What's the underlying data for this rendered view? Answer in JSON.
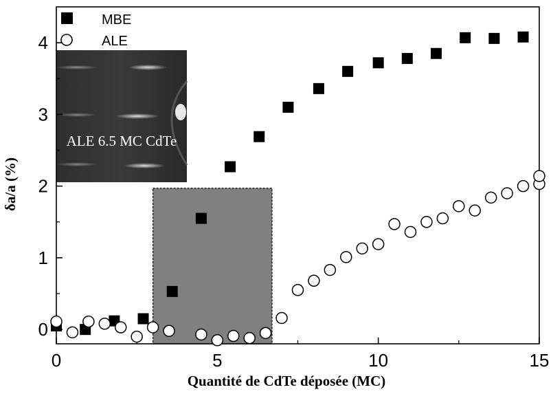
{
  "chart_data": {
    "type": "scatter",
    "xlabel": "Quantité de CdTe déposée (MC)",
    "ylabel": "δa/a (%)",
    "xlim": [
      0,
      15
    ],
    "ylim": [
      -0.2,
      4.5
    ],
    "xticks": [
      0,
      5,
      10,
      15
    ],
    "yticks": [
      0,
      1,
      2,
      3,
      4
    ],
    "legend_position": "top-left",
    "series": [
      {
        "name": "MBE",
        "marker": "filled-square",
        "color": "#000000",
        "points": [
          [
            0,
            0.05
          ],
          [
            0.9,
            0.0
          ],
          [
            1.8,
            0.12
          ],
          [
            2.7,
            0.15
          ],
          [
            3.6,
            0.53
          ],
          [
            4.5,
            1.55
          ],
          [
            5.4,
            2.27
          ],
          [
            6.3,
            2.69
          ],
          [
            7.2,
            3.1
          ],
          [
            8.15,
            3.36
          ],
          [
            9.05,
            3.6
          ],
          [
            10.0,
            3.72
          ],
          [
            10.9,
            3.78
          ],
          [
            11.8,
            3.85
          ],
          [
            12.7,
            4.07
          ],
          [
            13.6,
            4.06
          ],
          [
            14.5,
            4.08
          ]
        ]
      },
      {
        "name": "ALE",
        "marker": "open-circle",
        "color": "#000000",
        "points": [
          [
            0,
            0.11
          ],
          [
            0.5,
            -0.04
          ],
          [
            1.0,
            0.11
          ],
          [
            1.5,
            0.08
          ],
          [
            2.0,
            0.03
          ],
          [
            2.5,
            -0.1
          ],
          [
            3.0,
            0.03
          ],
          [
            3.5,
            -0.02
          ],
          [
            4.5,
            -0.07
          ],
          [
            5.0,
            -0.15
          ],
          [
            5.5,
            -0.09
          ],
          [
            6.0,
            -0.12
          ],
          [
            6.5,
            -0.05
          ],
          [
            7.0,
            0.16
          ],
          [
            7.5,
            0.55
          ],
          [
            8.0,
            0.68
          ],
          [
            8.5,
            0.83
          ],
          [
            9.0,
            1.01
          ],
          [
            9.5,
            1.13
          ],
          [
            10.0,
            1.19
          ],
          [
            10.5,
            1.47
          ],
          [
            11.0,
            1.36
          ],
          [
            11.5,
            1.5
          ],
          [
            12.0,
            1.55
          ],
          [
            12.5,
            1.72
          ],
          [
            13.0,
            1.66
          ],
          [
            13.5,
            1.84
          ],
          [
            14.0,
            1.9
          ],
          [
            14.5,
            2.0
          ],
          [
            15.0,
            2.03
          ],
          [
            15.0,
            2.14
          ]
        ]
      }
    ],
    "shaded_region": {
      "x": [
        3.0,
        6.7
      ],
      "y": [
        -0.2,
        1.97
      ],
      "color": "#808080"
    },
    "inset": {
      "caption": "ALE 6.5 MC CdTe"
    }
  }
}
